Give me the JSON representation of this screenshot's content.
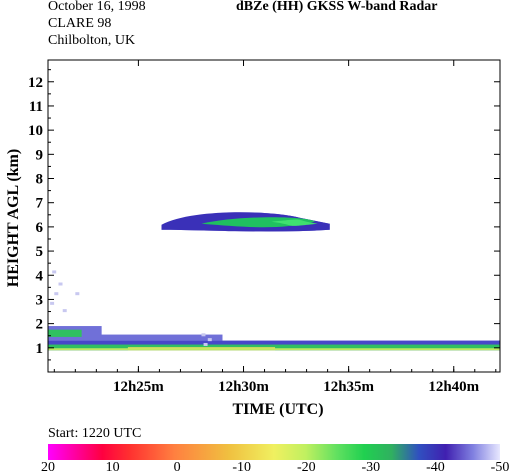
{
  "header": {
    "date": "October 16, 1998",
    "campaign": "CLARE 98",
    "location": "Chilbolton, UK",
    "title": "dBZe (HH)   GKSS  W-band Radar"
  },
  "start_label": "Start: 1220 UTC",
  "colorbar": {
    "labels": [
      "20",
      "10",
      "0",
      "-10",
      "-20",
      "-30",
      "-40",
      "-50"
    ]
  },
  "chart_data": {
    "type": "heatmap",
    "title": "dBZe (HH)   GKSS  W-band Radar",
    "xlabel": "TIME (UTC)",
    "ylabel": "HEIGHT AGL (km)",
    "xlim": [
      20.7,
      42.2
    ],
    "ylim": [
      0,
      12.9
    ],
    "x_ticks": [
      25,
      30,
      35,
      40
    ],
    "x_tick_labels": [
      "12h25m",
      "12h30m",
      "12h35m",
      "12h40m"
    ],
    "y_ticks": [
      1,
      2,
      3,
      4,
      5,
      6,
      7,
      8,
      9,
      10,
      11,
      12
    ],
    "y_tick_labels": [
      "1",
      "2",
      "3",
      "4",
      "5",
      "6",
      "7",
      "8",
      "9",
      "10",
      "11",
      "12"
    ],
    "units": "dBZe",
    "color_range": [
      20,
      -50
    ],
    "features": [
      {
        "layer": "mid-level cloud",
        "t_start": 26.1,
        "t_end": 34.1,
        "base_km": 5.8,
        "top_km": 6.6,
        "peak_dBZe": -30
      },
      {
        "layer": "low-level cloud",
        "t_start": 20.7,
        "t_end": 42.2,
        "base_km": 0.9,
        "top_km": 1.3,
        "peak_dBZe": -15
      },
      {
        "layer": "scattered echoes",
        "t_start": 20.7,
        "t_end": 22.3,
        "base_km": 1.3,
        "top_km": 4.3,
        "peak_dBZe": -40
      }
    ]
  }
}
